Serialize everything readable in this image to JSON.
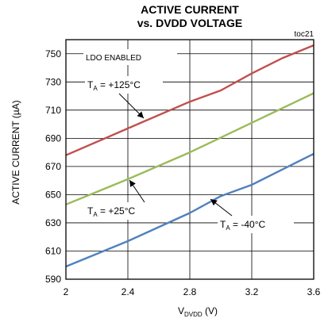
{
  "chart_data": {
    "type": "line",
    "title_line1": "ACTIVE CURRENT",
    "title_line2": "vs. DVDD VOLTAGE",
    "figure_id": "toc21",
    "xlabel_main": "V",
    "xlabel_sub": "DVDD",
    "xlabel_unit": " (V)",
    "ylabel": "ACTIVE CURRENT (µA)",
    "xlim": [
      2,
      3.6
    ],
    "ylim": [
      590,
      760
    ],
    "x_ticks": [
      "2",
      "2.4",
      "2.8",
      "3.2",
      "3.6"
    ],
    "y_ticks": [
      "590",
      "610",
      "630",
      "650",
      "670",
      "690",
      "710",
      "730",
      "750"
    ],
    "grid": true,
    "note": "LDO ENABLED",
    "series": [
      {
        "name": "+125°C",
        "color": "#c0504d",
        "x": [
          2.0,
          2.4,
          2.8,
          3.0,
          3.2,
          3.4,
          3.6
        ],
        "y": [
          678,
          697,
          716,
          724,
          736,
          747,
          756
        ]
      },
      {
        "name": "+25°C",
        "color": "#9bbb59",
        "x": [
          2.0,
          2.4,
          2.8,
          3.2,
          3.6
        ],
        "y": [
          643,
          661,
          680,
          701,
          722
        ]
      },
      {
        "name": "-40°C",
        "color": "#4f81bd",
        "x": [
          2.0,
          2.4,
          2.8,
          3.0,
          3.2,
          3.4,
          3.6
        ],
        "y": [
          599,
          617,
          637,
          649,
          657,
          668,
          679
        ]
      }
    ],
    "annotations": [
      {
        "prefix": "T",
        "sub": "A",
        "text": " = +125°C",
        "series": 0
      },
      {
        "prefix": "T",
        "sub": "A",
        "text": " = +25°C",
        "series": 1
      },
      {
        "prefix": "T",
        "sub": "A",
        "text": " = -40°C",
        "series": 2
      }
    ]
  }
}
